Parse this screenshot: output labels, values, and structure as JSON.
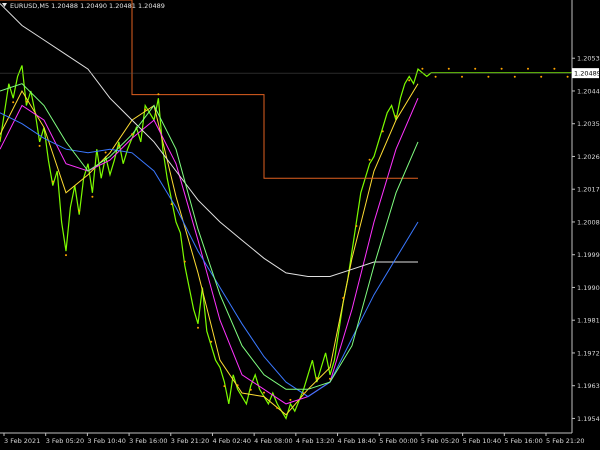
{
  "header": {
    "symbol_line": "EURUSD,M5  1.20488 1.20490 1.20481 1.20489",
    "arrow_icon": "triangle-down-icon"
  },
  "chart_data": {
    "type": "line",
    "title": "",
    "symbol": "EURUSD",
    "timeframe": "M5",
    "ohlc": {
      "open": 1.20488,
      "high": 1.2049,
      "low": 1.20481,
      "close": 1.20489
    },
    "current_price_label": "1.20489",
    "current_price": 1.20489,
    "ylim": [
      1.195,
      1.2069
    ],
    "y_ticks": [
      "1.20530",
      "1.20440",
      "1.20350",
      "1.20260",
      "1.20170",
      "1.20080",
      "1.19990",
      "1.19900",
      "1.19810",
      "1.19720",
      "1.19630",
      "1.19540"
    ],
    "x_ticks": [
      "3 Feb 2021",
      "3 Feb 05:20",
      "3 Feb 10:40",
      "3 Feb 16:00",
      "3 Feb 21:20",
      "4 Feb 02:40",
      "4 Feb 08:00",
      "4 Feb 13:20",
      "4 Feb 18:40",
      "5 Feb 00:00",
      "5 Feb 05:20",
      "5 Feb 10:40",
      "5 Feb 16:00",
      "5 Feb 21:20"
    ],
    "grid": false,
    "series": [
      {
        "color": "#7cfc00",
        "x": [
          0,
          2,
          4,
          6,
          8,
          10,
          12,
          14,
          16,
          18,
          20,
          22,
          24,
          26,
          28,
          30,
          32,
          34,
          36,
          38,
          40,
          42,
          44,
          46,
          48,
          50,
          52,
          54,
          56,
          58,
          60,
          62,
          64,
          66,
          68,
          70,
          72,
          74,
          76,
          78,
          80,
          82,
          84,
          86,
          88,
          90,
          92,
          94,
          96,
          98,
          100,
          102,
          104,
          106,
          108,
          110,
          112,
          114,
          116,
          118,
          120,
          122,
          124,
          126,
          128,
          130,
          132,
          134,
          136,
          138,
          140,
          142,
          144,
          146,
          148,
          150,
          152,
          154,
          156,
          158,
          160,
          162,
          164,
          166,
          168,
          170,
          172,
          174,
          176,
          178,
          180,
          182,
          184,
          186,
          188,
          190,
          192,
          194,
          196,
          198,
          200,
          202,
          204,
          206,
          208,
          210,
          212,
          214,
          216,
          218,
          220,
          222,
          224,
          226,
          228,
          230,
          232,
          234,
          236,
          238,
          240,
          242,
          244,
          246,
          248,
          250,
          252,
          254,
          256,
          258,
          260
        ],
        "values": [
          1.203,
          1.2038,
          1.2046,
          1.2042,
          1.2048,
          1.2051,
          1.204,
          1.2044,
          1.2038,
          1.203,
          1.2034,
          1.2025,
          1.2018,
          1.2022,
          1.2008,
          1.2,
          1.2012,
          1.2018,
          1.201,
          1.202,
          1.2024,
          1.2016,
          1.2028,
          1.202,
          1.2026,
          1.2021,
          1.2025,
          1.203,
          1.2024,
          1.2028,
          1.2031,
          1.2034,
          1.203,
          1.204,
          1.2038,
          1.2036,
          1.2042,
          1.2028,
          1.202,
          1.2014,
          1.2008,
          1.2005,
          1.1996,
          1.199,
          1.1984,
          1.198,
          1.199,
          1.1978,
          1.1974,
          1.197,
          1.1968,
          1.1964,
          1.1958,
          1.1966,
          1.1962,
          1.196,
          1.1958,
          1.1963,
          1.1966,
          1.1962,
          1.196,
          1.1958,
          1.1961,
          1.1958,
          1.1956,
          1.1954,
          1.1958,
          1.1956,
          1.1959,
          1.1962,
          1.1966,
          1.197,
          1.1964,
          1.1968,
          1.1972,
          1.1966,
          1.197,
          1.1978,
          1.1986,
          1.1992,
          1.2,
          1.2008,
          1.2016,
          1.202,
          1.2024,
          1.2026,
          1.203,
          1.2034,
          1.2038,
          1.204,
          1.2036,
          1.2042,
          1.2046,
          1.2048,
          1.2046,
          1.205,
          1.2049,
          1.2048,
          1.2049,
          1.2049,
          1.2049,
          1.2049,
          1.2049,
          1.2049,
          1.2049,
          1.2049,
          1.2049,
          1.2049,
          1.2049,
          1.2049,
          1.2049,
          1.2049,
          1.2049,
          1.2049,
          1.2049,
          1.2049,
          1.2049,
          1.2049,
          1.2049,
          1.2049,
          1.2049,
          1.2049,
          1.2049,
          1.2049,
          1.2049,
          1.2049,
          1.2049,
          1.2049,
          1.2049,
          1.2049,
          1.2049
        ]
      },
      {
        "color": "#ffdd33",
        "x": [
          0,
          10,
          20,
          30,
          40,
          50,
          60,
          70,
          80,
          90,
          100,
          110,
          120,
          130,
          140,
          150,
          160,
          170,
          180,
          190
        ],
        "values": [
          1.2032,
          1.2044,
          1.2034,
          1.2016,
          1.2021,
          1.2027,
          1.2036,
          1.204,
          1.2015,
          1.1994,
          1.197,
          1.1961,
          1.196,
          1.1955,
          1.1962,
          1.1968,
          1.1998,
          1.2022,
          1.2036,
          1.2046
        ]
      },
      {
        "color": "#ff33ff",
        "x": [
          0,
          10,
          20,
          30,
          40,
          50,
          60,
          70,
          80,
          90,
          100,
          110,
          120,
          130,
          140,
          150,
          160,
          170,
          180,
          190
        ],
        "values": [
          1.2028,
          1.204,
          1.2036,
          1.2024,
          1.2022,
          1.2025,
          1.2031,
          1.2036,
          1.2024,
          1.2003,
          1.1981,
          1.1966,
          1.1962,
          1.1958,
          1.196,
          1.1964,
          1.1984,
          1.2008,
          1.2028,
          1.2042
        ]
      },
      {
        "color": "#e0e0e0",
        "x": [
          0,
          10,
          20,
          30,
          40,
          50,
          60,
          70,
          80,
          90,
          100,
          110,
          120,
          130,
          140,
          150,
          160,
          170,
          180,
          190
        ],
        "values": [
          1.2068,
          1.2062,
          1.2058,
          1.2054,
          1.205,
          1.2042,
          1.2036,
          1.203,
          1.2022,
          1.2014,
          1.2008,
          1.2003,
          1.1998,
          1.1994,
          1.1993,
          1.1993,
          1.1995,
          1.1997,
          1.1997,
          1.1997
        ]
      },
      {
        "color": "#e06020",
        "x": [
          0,
          60,
          60,
          120,
          120,
          190
        ],
        "values": [
          1.2069,
          1.2069,
          1.2043,
          1.2043,
          1.202,
          1.202
        ]
      },
      {
        "color": "#3a78ff",
        "x": [
          0,
          10,
          20,
          30,
          40,
          50,
          60,
          70,
          80,
          90,
          100,
          110,
          120,
          130,
          140,
          150,
          160,
          170,
          180,
          190
        ],
        "values": [
          1.2038,
          1.2035,
          1.2031,
          1.2028,
          1.2027,
          1.2028,
          1.2027,
          1.2022,
          1.2012,
          1.2,
          1.199,
          1.198,
          1.1971,
          1.1964,
          1.196,
          1.1964,
          1.1976,
          1.1988,
          1.1998,
          1.2008
        ]
      },
      {
        "color": "#80ff80",
        "x": [
          0,
          10,
          20,
          30,
          40,
          50,
          60,
          70,
          80,
          90,
          100,
          110,
          120,
          130,
          140,
          150,
          160,
          170,
          180,
          190
        ],
        "values": [
          1.2044,
          1.2046,
          1.204,
          1.203,
          1.2022,
          1.2026,
          1.2032,
          1.204,
          1.2028,
          1.2006,
          1.1988,
          1.1974,
          1.1966,
          1.1962,
          1.1962,
          1.1964,
          1.1974,
          1.1996,
          1.2016,
          1.203
        ]
      }
    ]
  },
  "colors": {
    "background": "#000000",
    "axis": "#c0c0c0",
    "price_tag_bg": "#ffffff",
    "dots": "#ffa500"
  }
}
